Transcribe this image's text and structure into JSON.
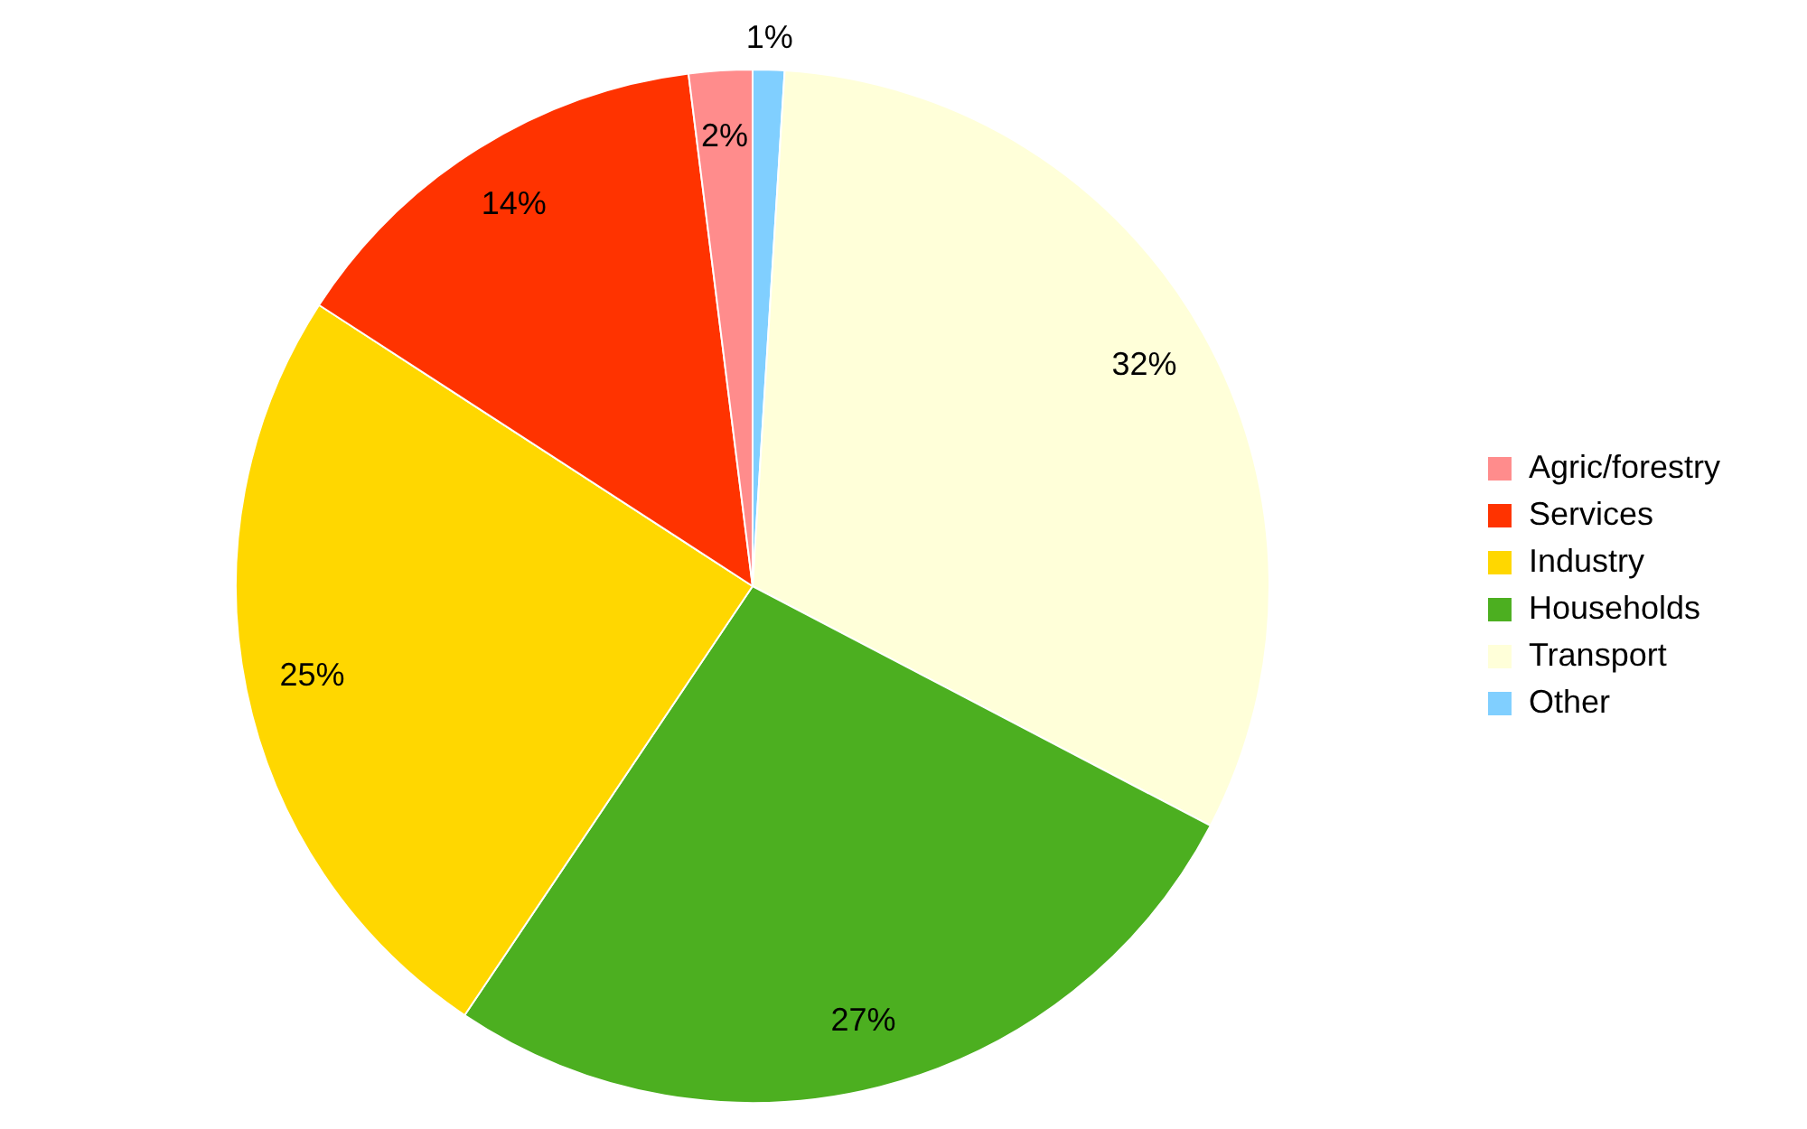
{
  "chart_data": {
    "type": "pie",
    "categories": [
      "Agric/forestry",
      "Services",
      "Industry",
      "Households",
      "Transport",
      "Other"
    ],
    "values": [
      2,
      14,
      25,
      27,
      32,
      1
    ],
    "colors": [
      "#ff8c8c",
      "#ff3300",
      "#ffd700",
      "#4caf20",
      "#ffffd9",
      "#80cfff"
    ],
    "value_labels": [
      "2%",
      "14%",
      "25%",
      "27%",
      "32%",
      "1%"
    ],
    "legend": "right"
  }
}
